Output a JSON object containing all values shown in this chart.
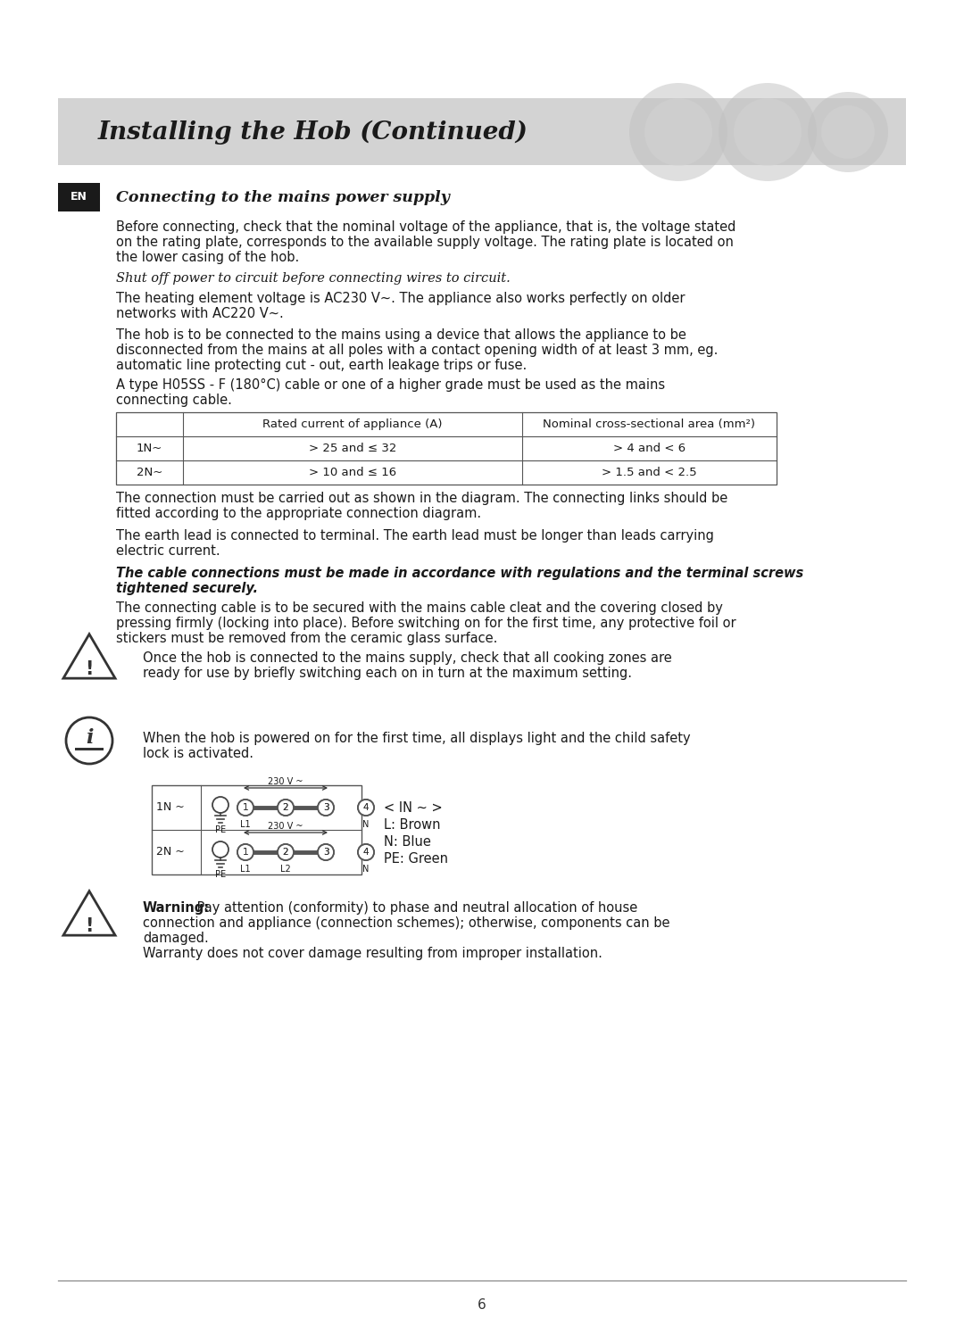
{
  "bg_color": "#ffffff",
  "header_bg": "#d3d3d3",
  "header_text": "Installing the Hob (Continued)",
  "header_font_size": 20,
  "en_text": "EN",
  "section_title": "Connecting to the mains power supply",
  "section_title_font_size": 12.5,
  "body_font_size": 10.5,
  "para1_lines": [
    "Before connecting, check that the nominal voltage of the appliance, that is, the voltage stated",
    "on the rating plate, corresponds to the available supply voltage. The rating plate is located on",
    "the lower casing of the hob."
  ],
  "sub_title1": "Shut off power to circuit before connecting wires to circuit.",
  "para2_lines": [
    "The heating element voltage is AC230 V~. The appliance also works perfectly on older",
    "networks with AC220 V~."
  ],
  "para3_lines": [
    "The hob is to be connected to the mains using a device that allows the appliance to be",
    "disconnected from the mains at all poles with a contact opening width of at least 3 mm, eg.",
    "automatic line protecting cut - out, earth leakage trips or fuse."
  ],
  "para4_lines": [
    "A type H05SS - F (180°C) cable or one of a higher grade must be used as the mains",
    "connecting cable."
  ],
  "table_col_headers": [
    "",
    "Rated current of appliance (A)",
    "Nominal cross-sectional area (mm²)"
  ],
  "table_rows": [
    [
      "1N~",
      "> 25 and ≤ 32",
      "> 4 and < 6"
    ],
    [
      "2N~",
      "> 10 and ≤ 16",
      "> 1.5 and < 2.5"
    ]
  ],
  "para5_lines": [
    "The connection must be carried out as shown in the diagram. The connecting links should be",
    "fitted according to the appropriate connection diagram."
  ],
  "para6_lines": [
    "The earth lead is connected to terminal. The earth lead must be longer than leads carrying",
    "electric current."
  ],
  "bold_italic_lines": [
    "The cable connections must be made in accordance with regulations and the terminal screws",
    "tightened securely."
  ],
  "para7_lines": [
    "The connecting cable is to be secured with the mains cable cleat and the covering closed by",
    "pressing firmly (locking into place). Before switching on for the first time, any protective foil or",
    "stickers must be removed from the ceramic glass surface."
  ],
  "warning_text1_lines": [
    "Once the hob is connected to the mains supply, check that all cooking zones are",
    "ready for use by briefly switching each on in turn at the maximum setting."
  ],
  "info_text1_lines": [
    "When the hob is powered on for the first time, all displays light and the child safety",
    "lock is activated."
  ],
  "legend_lines": [
    "< IN ~ >",
    "L: Brown",
    "N: Blue",
    "PE: Green"
  ],
  "warning2_bold": "Warning:",
  "warning2_lines": [
    " Pay attention (conformity) to phase and neutral allocation of house",
    "connection and appliance (connection schemes); otherwise, components can be",
    "damaged.",
    "Warranty does not cover damage resulting from improper installation."
  ],
  "page_number": "6"
}
